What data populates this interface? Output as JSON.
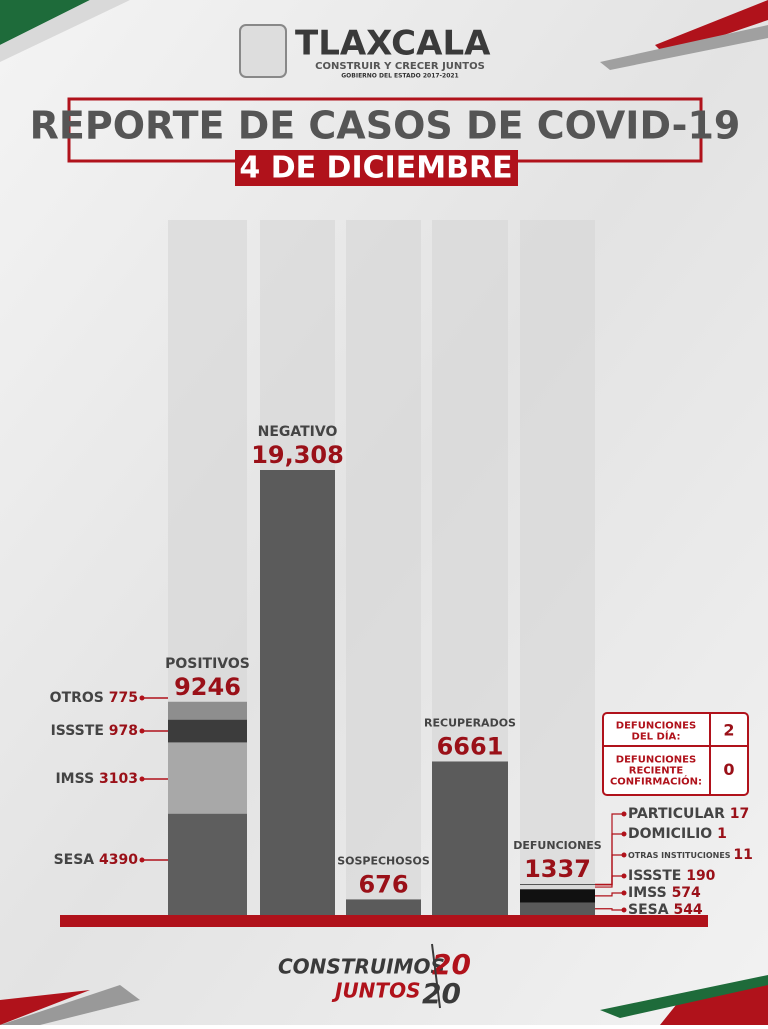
{
  "header": {
    "brand": "TLAXCALA",
    "slogan": "CONSTRUIR Y CRECER JUNTOS",
    "government": "GOBIERNO DEL ESTADO 2017-2021"
  },
  "chart_data": {
    "type": "bar",
    "title": "REPORTE DE CASOS DE COVID-19",
    "subtitle": "4 DE DICIEMBRE",
    "categories": [
      "POSITIVOS",
      "NEGATIVO",
      "SOSPECHOSOS",
      "RECUPERADOS",
      "DEFUNCIONES"
    ],
    "values": [
      9246,
      19308,
      676,
      6661,
      1337
    ],
    "value_labels": [
      "9246",
      "19,308",
      "676",
      "6661",
      "1337"
    ],
    "color": "#5b5b5b",
    "positivos_breakdown": {
      "labels": [
        "SESA",
        "IMSS",
        "ISSSTE",
        "OTROS"
      ],
      "values": [
        4390,
        3103,
        978,
        775
      ],
      "colors": [
        "#5e5e5e",
        "#a8a8a8",
        "#3c3c3c",
        "#8e8e8e"
      ]
    },
    "defunciones_breakdown": {
      "labels": [
        "SESA",
        "IMSS",
        "ISSSTE",
        "OTRAS INSTITUCIONES",
        "DOMICILIO",
        "PARTICULAR"
      ],
      "values": [
        544,
        574,
        190,
        11,
        1,
        17
      ],
      "colors": [
        "#5a5a5a",
        "#111111",
        "#d9d9d9",
        "#444444",
        "#777777",
        "#333333"
      ]
    }
  },
  "box": {
    "rows": [
      {
        "label": "DEFUNCIONES\nDEL DÍA:",
        "value": 2
      },
      {
        "label": "DEFUNCIONES\nRECIENTE\nCONFIRMACIÓN:",
        "value": 0
      }
    ]
  },
  "footer": {
    "line1": "CONSTRUIMOS",
    "year1": "20",
    "line2": "JUNTOS",
    "year2": "20"
  }
}
